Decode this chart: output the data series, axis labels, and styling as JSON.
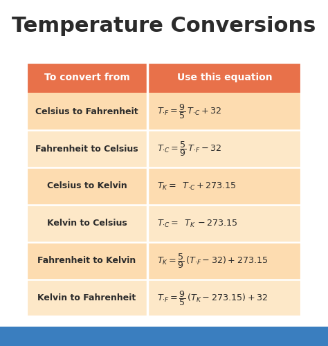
{
  "title": "Temperature Conversions",
  "title_fontsize": 22,
  "title_fontweight": "bold",
  "background_color": "#ffffff",
  "header_color": "#E8714A",
  "row_color_odd": "#FDDCB0",
  "row_color_even": "#FDE8C8",
  "text_color": "#2b2b2b",
  "header_text_color": "#ffffff",
  "col1_header": "To convert from",
  "col2_header": "Use this equation",
  "rows": [
    {
      "col1": "Celsius to Fahrenheit",
      "eq": "$T_{\\cdot F} = \\dfrac{9}{5}\\, T_{\\cdot C} + 32$"
    },
    {
      "col1": "Fahrenheit to Celsius",
      "eq": "$T_{\\cdot C} = \\dfrac{5}{9}\\, T_{\\cdot F} - 32$"
    },
    {
      "col1": "Celsius to Kelvin",
      "eq": "$T_{K} = \\;\\; T_{\\cdot C} + 273.15$"
    },
    {
      "col1": "Kelvin to Celsius",
      "eq": "$T_{\\cdot C} = \\;\\; T_{K} \\, - 273.15$"
    },
    {
      "col1": "Fahrenheit to Kelvin",
      "eq": "$T_{K} = \\dfrac{5}{9}\\,( T_{\\cdot F} - 32) +273.15$"
    },
    {
      "col1": "Kelvin to Fahrenheit",
      "eq": "$T_{\\cdot F} = \\dfrac{9}{5}\\,( T_{K} - 273.15) + 32$"
    }
  ],
  "fig_width": 4.74,
  "fig_height": 5.0,
  "dpi": 100
}
